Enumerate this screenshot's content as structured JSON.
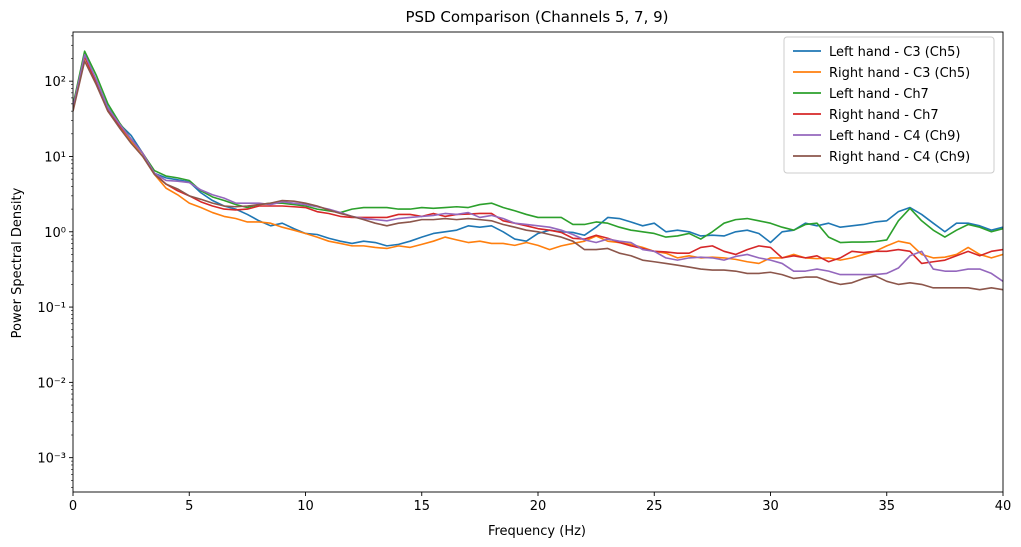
{
  "chart_data": {
    "type": "line",
    "title": "PSD Comparison (Channels 5, 7, 9)",
    "xlabel": "Frequency (Hz)",
    "ylabel": "Power Spectral Density",
    "xlim": [
      0,
      40
    ],
    "ylim": [
      0.00035,
      450
    ],
    "yscale": "log",
    "xticks": [
      0,
      5,
      10,
      15,
      20,
      25,
      30,
      35,
      40
    ],
    "xtick_labels": [
      "0",
      "5",
      "10",
      "15",
      "20",
      "25",
      "30",
      "35",
      "40"
    ],
    "yticks": [
      0.001,
      0.01,
      0.1,
      1,
      10,
      100
    ],
    "ytick_labels": [
      "10⁻³",
      "10⁻²",
      "10⁻¹",
      "10⁰",
      "10¹",
      "10²"
    ],
    "grid": false,
    "legend_position": "top-right",
    "x": [
      0,
      0.5,
      1,
      1.5,
      2,
      2.5,
      3,
      3.5,
      4,
      4.5,
      5,
      5.5,
      6,
      6.5,
      7,
      7.5,
      8,
      8.5,
      9,
      9.5,
      10,
      10.5,
      11,
      11.5,
      12,
      12.5,
      13,
      13.5,
      14,
      14.5,
      15,
      15.5,
      16,
      16.5,
      17,
      17.5,
      18,
      18.5,
      19,
      19.5,
      20,
      20.5,
      21,
      21.5,
      22,
      22.5,
      23,
      23.5,
      24,
      24.5,
      25,
      25.5,
      26,
      26.5,
      27,
      27.5,
      28,
      28.5,
      29,
      29.5,
      30,
      30.5,
      31,
      31.5,
      32,
      32.5,
      33,
      33.5,
      34,
      34.5,
      35,
      35.5,
      36,
      36.5,
      37,
      37.5,
      38,
      38.5,
      39,
      39.5,
      40
    ],
    "series": [
      {
        "name": "Left hand - C3 (Ch5)",
        "color": "#1f77b4",
        "values": [
          45,
          235,
          100,
          45,
          27,
          19,
          11,
          6.0,
          5.2,
          4.9,
          4.6,
          3.3,
          2.6,
          2.2,
          2.0,
          1.7,
          1.4,
          1.2,
          1.3,
          1.1,
          0.95,
          0.92,
          0.82,
          0.75,
          0.7,
          0.75,
          0.72,
          0.65,
          0.68,
          0.75,
          0.85,
          0.95,
          1.0,
          1.05,
          1.2,
          1.15,
          1.2,
          1.0,
          0.8,
          0.75,
          0.95,
          1.05,
          1.0,
          0.98,
          0.9,
          1.15,
          1.55,
          1.5,
          1.35,
          1.2,
          1.3,
          1.0,
          1.05,
          1.0,
          0.88,
          0.9,
          0.88,
          1.0,
          1.05,
          0.95,
          0.72,
          1.0,
          1.05,
          1.3,
          1.2,
          1.3,
          1.15,
          1.2,
          1.25,
          1.35,
          1.4,
          1.85,
          2.1,
          1.7,
          1.3,
          1.0,
          1.3,
          1.3,
          1.2,
          1.05,
          1.15
        ]
      },
      {
        "name": "Right hand - C3 (Ch5)",
        "color": "#ff7f0e",
        "values": [
          42,
          210,
          95,
          40,
          25,
          16,
          10,
          5.8,
          3.8,
          3.1,
          2.4,
          2.1,
          1.8,
          1.6,
          1.5,
          1.35,
          1.35,
          1.3,
          1.15,
          1.05,
          0.95,
          0.85,
          0.75,
          0.7,
          0.65,
          0.65,
          0.62,
          0.6,
          0.65,
          0.62,
          0.68,
          0.75,
          0.85,
          0.78,
          0.72,
          0.75,
          0.7,
          0.7,
          0.66,
          0.72,
          0.66,
          0.58,
          0.65,
          0.7,
          0.75,
          0.88,
          0.75,
          0.72,
          0.68,
          0.62,
          0.55,
          0.52,
          0.45,
          0.48,
          0.45,
          0.46,
          0.45,
          0.43,
          0.4,
          0.38,
          0.45,
          0.45,
          0.5,
          0.45,
          0.44,
          0.45,
          0.42,
          0.45,
          0.5,
          0.55,
          0.65,
          0.75,
          0.7,
          0.5,
          0.45,
          0.46,
          0.5,
          0.62,
          0.5,
          0.45,
          0.5
        ]
      },
      {
        "name": "Left hand - Ch7",
        "color": "#2ca02c",
        "values": [
          48,
          250,
          120,
          50,
          28,
          17,
          11,
          6.5,
          5.5,
          5.2,
          4.8,
          3.5,
          2.9,
          2.6,
          2.3,
          2.1,
          2.3,
          2.4,
          2.4,
          2.3,
          2.2,
          2.0,
          1.9,
          1.8,
          2.0,
          2.1,
          2.1,
          2.1,
          2.0,
          2.0,
          2.1,
          2.05,
          2.1,
          2.15,
          2.1,
          2.3,
          2.4,
          2.1,
          1.9,
          1.7,
          1.55,
          1.55,
          1.55,
          1.25,
          1.25,
          1.35,
          1.3,
          1.15,
          1.05,
          1.0,
          0.95,
          0.85,
          0.88,
          0.95,
          0.8,
          1.0,
          1.3,
          1.45,
          1.5,
          1.4,
          1.3,
          1.15,
          1.05,
          1.25,
          1.3,
          0.85,
          0.72,
          0.73,
          0.73,
          0.74,
          0.78,
          1.4,
          2.05,
          1.4,
          1.05,
          0.85,
          1.05,
          1.25,
          1.15,
          1.0,
          1.1
        ]
      },
      {
        "name": "Right hand - Ch7",
        "color": "#d62728",
        "values": [
          44,
          215,
          95,
          42,
          26,
          17,
          11,
          6.0,
          4.3,
          3.5,
          3.0,
          2.5,
          2.2,
          2.0,
          1.95,
          2.0,
          2.2,
          2.2,
          2.2,
          2.15,
          2.1,
          1.85,
          1.75,
          1.6,
          1.55,
          1.55,
          1.55,
          1.55,
          1.7,
          1.7,
          1.6,
          1.75,
          1.6,
          1.7,
          1.72,
          1.75,
          1.75,
          1.4,
          1.3,
          1.2,
          1.1,
          1.05,
          0.98,
          0.82,
          0.8,
          0.9,
          0.82,
          0.72,
          0.65,
          0.6,
          0.55,
          0.54,
          0.52,
          0.52,
          0.62,
          0.65,
          0.55,
          0.5,
          0.58,
          0.65,
          0.62,
          0.45,
          0.48,
          0.45,
          0.48,
          0.4,
          0.45,
          0.55,
          0.53,
          0.55,
          0.55,
          0.58,
          0.55,
          0.38,
          0.4,
          0.42,
          0.48,
          0.55,
          0.48,
          0.55,
          0.58
        ]
      },
      {
        "name": "Left hand - C4 (Ch9)",
        "color": "#9467bd",
        "values": [
          44,
          225,
          105,
          44,
          27,
          17,
          11,
          6.0,
          4.8,
          4.7,
          4.5,
          3.6,
          3.1,
          2.8,
          2.4,
          2.4,
          2.4,
          2.3,
          2.5,
          2.4,
          2.3,
          2.15,
          2.0,
          1.8,
          1.6,
          1.5,
          1.45,
          1.4,
          1.5,
          1.55,
          1.6,
          1.65,
          1.75,
          1.7,
          1.8,
          1.55,
          1.65,
          1.5,
          1.3,
          1.25,
          1.2,
          1.15,
          1.05,
          0.92,
          0.78,
          0.72,
          0.8,
          0.75,
          0.72,
          0.58,
          0.55,
          0.45,
          0.42,
          0.45,
          0.46,
          0.45,
          0.42,
          0.47,
          0.5,
          0.45,
          0.42,
          0.38,
          0.3,
          0.3,
          0.32,
          0.3,
          0.27,
          0.27,
          0.27,
          0.27,
          0.28,
          0.33,
          0.48,
          0.55,
          0.32,
          0.3,
          0.3,
          0.32,
          0.32,
          0.28,
          0.22
        ]
      },
      {
        "name": "Right hand - C4 (Ch9)",
        "color": "#8c564b",
        "values": [
          40,
          185,
          90,
          40,
          24,
          15,
          10,
          5.8,
          4.3,
          3.7,
          3.0,
          2.7,
          2.4,
          2.2,
          2.15,
          2.2,
          2.3,
          2.4,
          2.6,
          2.55,
          2.4,
          2.2,
          1.95,
          1.75,
          1.6,
          1.45,
          1.3,
          1.2,
          1.3,
          1.35,
          1.45,
          1.45,
          1.5,
          1.45,
          1.5,
          1.45,
          1.4,
          1.25,
          1.15,
          1.05,
          1.0,
          0.92,
          0.85,
          0.75,
          0.58,
          0.58,
          0.6,
          0.52,
          0.48,
          0.42,
          0.4,
          0.38,
          0.36,
          0.34,
          0.32,
          0.31,
          0.31,
          0.3,
          0.28,
          0.28,
          0.29,
          0.27,
          0.24,
          0.25,
          0.25,
          0.22,
          0.2,
          0.21,
          0.24,
          0.26,
          0.22,
          0.2,
          0.21,
          0.2,
          0.18,
          0.18,
          0.18,
          0.18,
          0.17,
          0.18,
          0.17
        ]
      }
    ]
  }
}
